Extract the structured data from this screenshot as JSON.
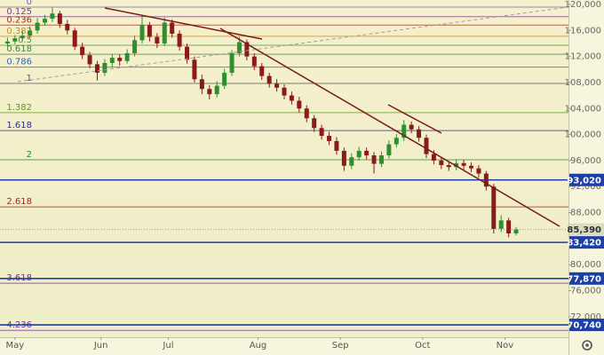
{
  "chart_data": {
    "type": "candlestick",
    "x": [
      -4,
      -2,
      0,
      2,
      4,
      6,
      8,
      10,
      12,
      14,
      16,
      18,
      20,
      22,
      24,
      26,
      28,
      30,
      32,
      34,
      36,
      38,
      40,
      42,
      44,
      46,
      48,
      50,
      52,
      54,
      56,
      58,
      60,
      62,
      64,
      66,
      68,
      70,
      72,
      74,
      76,
      78,
      80,
      82,
      84,
      86,
      88,
      90,
      92,
      94,
      96,
      98,
      100,
      102,
      104,
      106,
      108,
      110,
      112,
      114,
      116,
      118,
      120,
      122,
      124,
      126,
      128,
      130,
      132
    ],
    "open": [
      114000,
      114300,
      114800,
      115200,
      116000,
      117200,
      117800,
      118600,
      117000,
      116000,
      113500,
      112200,
      110800,
      109500,
      111000,
      111800,
      111300,
      112500,
      114500,
      116800,
      115000,
      114000,
      117200,
      115500,
      113500,
      111500,
      108500,
      107000,
      106200,
      107500,
      109500,
      112500,
      114200,
      112000,
      110500,
      109000,
      107800,
      107200,
      106000,
      105200,
      104000,
      102500,
      101000,
      99800,
      99000,
      97500,
      95200,
      96500,
      97500,
      96800,
      95500,
      96800,
      98500,
      99500,
      101500,
      100800,
      99500,
      97000,
      96000,
      95300,
      95000,
      95600,
      95200,
      94800,
      94000,
      92000,
      85500,
      86800,
      84800
    ],
    "high": [
      114900,
      115300,
      115900,
      116600,
      117900,
      118400,
      119500,
      119000,
      117600,
      116400,
      114100,
      112700,
      111300,
      111600,
      112400,
      112300,
      113100,
      115200,
      118400,
      117300,
      115600,
      118000,
      117700,
      116000,
      114000,
      112000,
      109200,
      107600,
      108200,
      110100,
      113000,
      115000,
      114600,
      112500,
      111000,
      109500,
      108500,
      107700,
      106600,
      105800,
      104500,
      103000,
      101500,
      100400,
      99600,
      98000,
      97100,
      98100,
      98000,
      97300,
      97400,
      99100,
      100100,
      102200,
      102000,
      101300,
      100000,
      97600,
      96500,
      95900,
      96200,
      96100,
      95700,
      95300,
      94400,
      92400,
      87600,
      87200,
      85800
    ],
    "low": [
      113500,
      113900,
      114300,
      114800,
      115500,
      116700,
      117300,
      116400,
      115400,
      113000,
      111600,
      110200,
      108300,
      109000,
      110300,
      110600,
      110900,
      112000,
      114000,
      114300,
      113300,
      113600,
      114900,
      112900,
      110900,
      108000,
      106200,
      105400,
      105700,
      107000,
      109000,
      112000,
      111400,
      109900,
      108400,
      107200,
      106600,
      105400,
      104600,
      103400,
      101900,
      100400,
      99200,
      98400,
      96900,
      94400,
      94700,
      96000,
      96200,
      94000,
      95000,
      96300,
      98000,
      99000,
      100200,
      98900,
      96400,
      95400,
      94700,
      94400,
      94500,
      94600,
      94200,
      93400,
      91400,
      84800,
      85000,
      84200,
      84500
    ],
    "close": [
      114300,
      114800,
      115200,
      116000,
      117200,
      117800,
      118600,
      117000,
      116000,
      113500,
      112200,
      110800,
      109500,
      111000,
      111800,
      111300,
      112500,
      114500,
      116800,
      115000,
      114000,
      117200,
      115500,
      113500,
      111500,
      108500,
      107000,
      106200,
      107500,
      109500,
      112500,
      114200,
      112000,
      110500,
      109000,
      107800,
      107200,
      106000,
      105200,
      104000,
      102500,
      101000,
      99800,
      99000,
      97500,
      95200,
      96500,
      97500,
      96800,
      95500,
      96800,
      98500,
      99500,
      101500,
      100800,
      99500,
      97000,
      96000,
      95300,
      95000,
      95600,
      95200,
      94800,
      94000,
      92000,
      85500,
      86800,
      84800,
      85390
    ],
    "up_color": "#2f8f2f",
    "down_color": "#8b1a1a",
    "xlim": [
      -6,
      146
    ],
    "xticks": [
      {
        "value": -2,
        "label": "May"
      },
      {
        "value": 21,
        "label": "Jun"
      },
      {
        "value": 39,
        "label": "Jul"
      },
      {
        "value": 63,
        "label": "Aug"
      },
      {
        "value": 85,
        "label": "Sep"
      },
      {
        "value": 107,
        "label": "Oct"
      },
      {
        "value": 129,
        "label": "Nov"
      }
    ],
    "ylim": [
      68840,
      120680
    ],
    "yticks": [
      {
        "value": 120000,
        "label": "120,000"
      },
      {
        "value": 116000,
        "label": "116,000"
      },
      {
        "value": 112000,
        "label": "112,000"
      },
      {
        "value": 108000,
        "label": "108,000"
      },
      {
        "value": 104000,
        "label": "104,000"
      },
      {
        "value": 100000,
        "label": "100,000"
      },
      {
        "value": 96000,
        "label": "96,000"
      },
      {
        "value": 92000,
        "label": "92,000"
      },
      {
        "value": 88000,
        "label": "88,000"
      },
      {
        "value": 80000,
        "label": "80,000"
      },
      {
        "value": 76000,
        "label": "76,000"
      },
      {
        "value": 72000,
        "label": "72,000"
      }
    ],
    "fib_levels": [
      {
        "label": "0",
        "value": 119590,
        "color": "#6a6ab0"
      },
      {
        "label": "0.125",
        "value": 118120,
        "color": "#7a3a9a"
      },
      {
        "label": "0.236",
        "value": 116820,
        "color": "#a03020"
      },
      {
        "label": "0.382",
        "value": 115110,
        "color": "#c09020"
      },
      {
        "label": "0.5",
        "value": 113730,
        "color": "#4a9a2a"
      },
      {
        "label": "0.618",
        "value": 112340,
        "color": "#3a8a3a"
      },
      {
        "label": "0.786",
        "value": 110370,
        "color": "#2a6ab0"
      },
      {
        "label": "1",
        "value": 107860,
        "color": "#555555"
      },
      {
        "label": "1.382",
        "value": 103380,
        "color": "#5a9a1a"
      },
      {
        "label": "1.618",
        "value": 100610,
        "color": "#2a2aa0"
      },
      {
        "label": "2",
        "value": 96130,
        "color": "#2a8a2a"
      },
      {
        "label": "2.618",
        "value": 88880,
        "color": "#b02020"
      },
      {
        "label": "3.618",
        "value": 77150,
        "color": "#6a2aa0"
      },
      {
        "label": "4.236",
        "value": 69900,
        "color": "#7a2aa0"
      }
    ],
    "price_levels": [
      {
        "value": 93020,
        "label": "93,020",
        "color": "#1c3fa8"
      },
      {
        "value": 83420,
        "label": "83,420",
        "color": "#1c3fa8"
      },
      {
        "value": 77870,
        "label": "77,870",
        "color": "#1c3fa8"
      },
      {
        "value": 70740,
        "label": "70,740",
        "color": "#1c3fa8"
      }
    ],
    "last_price": {
      "value": 85390,
      "label": "85,390"
    }
  }
}
